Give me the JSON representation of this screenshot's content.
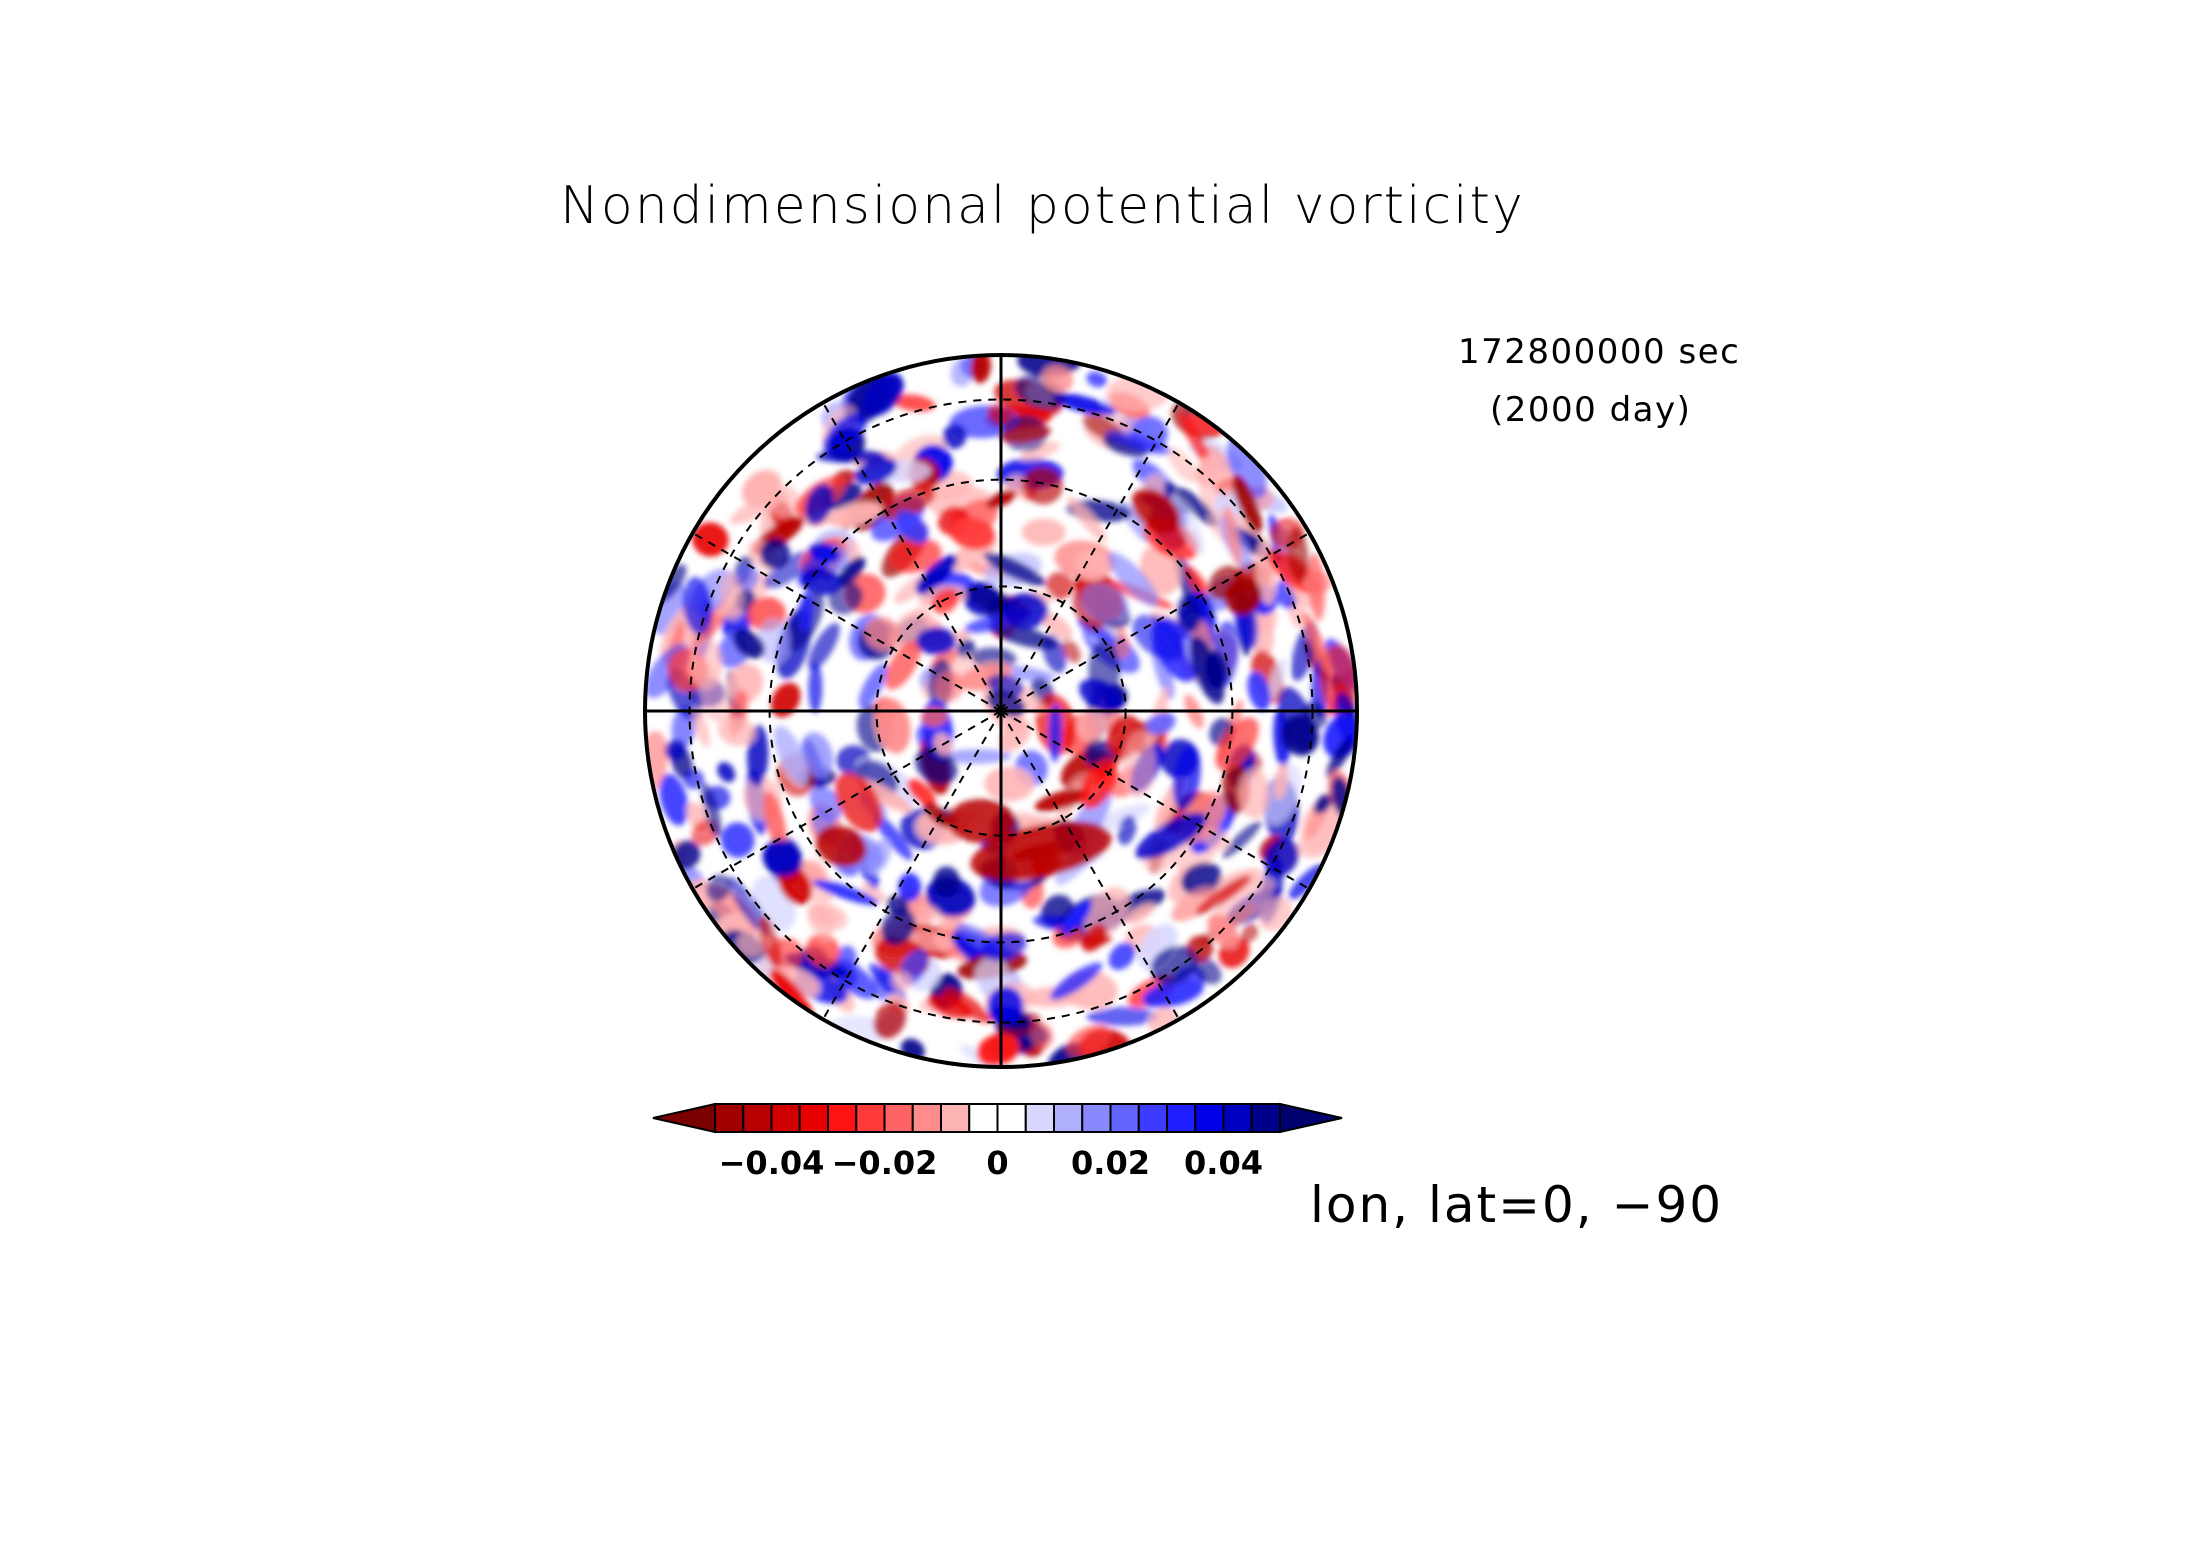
{
  "figure": {
    "title": "Nondimensional potential vorticity",
    "time_seconds": "172800000 sec",
    "time_days": "(2000 day)",
    "projection_label": "lon, lat=0, −90"
  },
  "chart_data": {
    "type": "heatmap",
    "title": "Nondimensional potential vorticity",
    "variable": "Nondimensional potential vorticity",
    "projection": "polar stereographic, centre lon, lat=0, −90",
    "grid": true,
    "colorbar": {
      "orientation": "horizontal",
      "placement": "bottom",
      "levels": [
        -0.05,
        -0.045,
        -0.04,
        -0.035,
        -0.03,
        -0.025,
        -0.02,
        -0.015,
        -0.01,
        -0.005,
        0,
        0.005,
        0.01,
        0.015,
        0.02,
        0.025,
        0.03,
        0.035,
        0.04,
        0.045,
        0.05
      ],
      "tick_values": [
        -0.04,
        -0.02,
        0,
        0.02,
        0.04
      ],
      "tick_labels": [
        "−0.04",
        "−0.02",
        "0",
        "0.02",
        "0.04"
      ],
      "colors": [
        "#7a0000",
        "#a00000",
        "#b80000",
        "#d00000",
        "#e80000",
        "#ff1414",
        "#ff3a3a",
        "#ff6464",
        "#ff8c8c",
        "#ffb4b4",
        "#ffffff",
        "#ffffff",
        "#d8d8ff",
        "#b0b0ff",
        "#8888ff",
        "#6464ff",
        "#3c3cff",
        "#1e1eff",
        "#0000e8",
        "#0000c0",
        "#00008a",
        "#00006e"
      ],
      "extend": "both"
    }
  }
}
